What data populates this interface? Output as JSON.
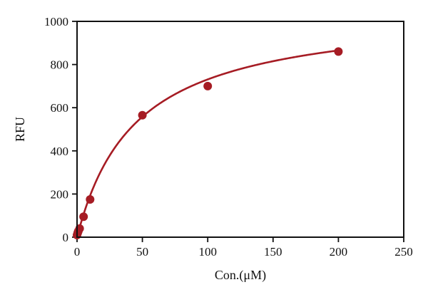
{
  "chart_data": {
    "type": "scatter",
    "xlabel": "Con.(μM)",
    "ylabel": "RFU",
    "xlim": [
      0,
      250
    ],
    "ylim": [
      0,
      1000
    ],
    "x_ticks": [
      0,
      50,
      100,
      150,
      200,
      250
    ],
    "y_ticks": [
      0,
      200,
      400,
      600,
      800,
      1000
    ],
    "x_tick_labels": [
      "0",
      "50",
      "100",
      "150",
      "200",
      "250"
    ],
    "y_tick_labels": [
      "0",
      "200",
      "400",
      "600",
      "800",
      "1000"
    ],
    "grid": false,
    "legend": "none",
    "series": [
      {
        "x": [
          0,
          0.5,
          1,
          2,
          5,
          10,
          50,
          100,
          200
        ],
        "y": [
          10,
          20,
          28,
          40,
          95,
          175,
          565,
          700,
          860
        ],
        "color": "#a61c24"
      }
    ],
    "fit_curve": {
      "model": "saturation",
      "ymax": 1060,
      "kd": 45,
      "x_range": [
        0,
        200
      ],
      "color": "#a61c24"
    }
  }
}
